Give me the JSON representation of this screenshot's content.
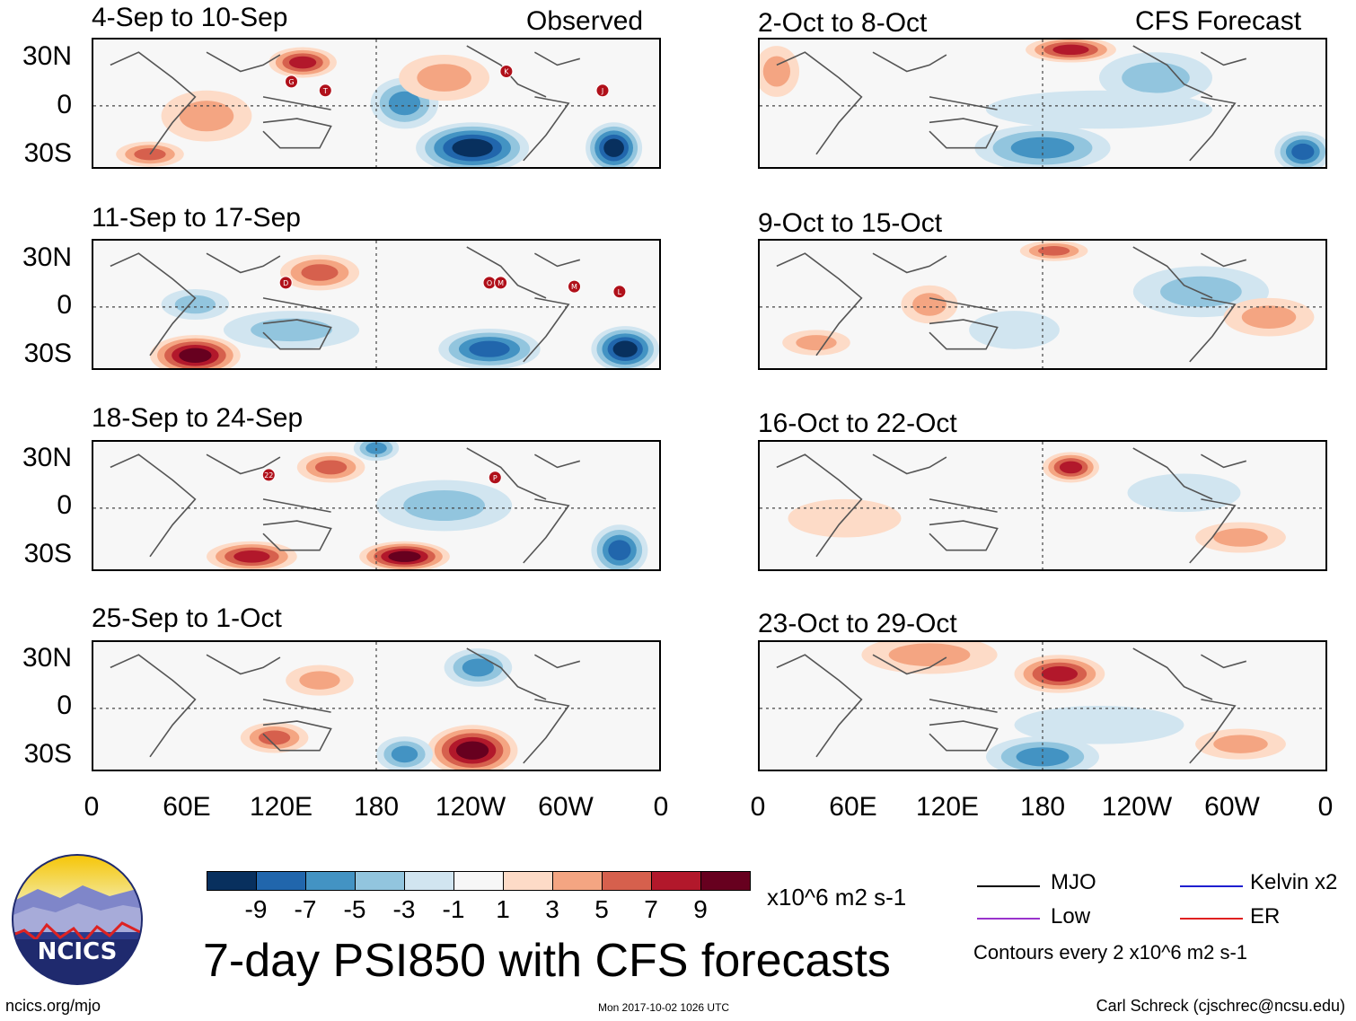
{
  "title": "7-day PSI850 with CFS forecasts",
  "header": {
    "observed_label": "Observed",
    "forecast_label": "CFS Forecast"
  },
  "panels": {
    "observed": [
      {
        "title": "4-Sep to 10-Sep",
        "storms": [
          "G",
          "T",
          "K",
          "J"
        ]
      },
      {
        "title": "11-Sep to 17-Sep",
        "storms": [
          "D",
          "O",
          "M",
          "M",
          "L"
        ]
      },
      {
        "title": "18-Sep to 24-Sep",
        "storms": [
          "22",
          "P"
        ]
      },
      {
        "title": "25-Sep to 1-Oct",
        "storms": []
      }
    ],
    "forecast": [
      {
        "title": "2-Oct to 8-Oct"
      },
      {
        "title": "9-Oct to 15-Oct"
      },
      {
        "title": "16-Oct to 22-Oct"
      },
      {
        "title": "23-Oct to 29-Oct"
      }
    ]
  },
  "axes": {
    "y_ticks": [
      "30N",
      "0",
      "30S"
    ],
    "x_ticks": [
      "0",
      "60E",
      "120E",
      "180",
      "120W",
      "60W",
      "0"
    ]
  },
  "colorbar": {
    "labels": [
      "-9",
      "-7",
      "-5",
      "-3",
      "-1",
      "1",
      "3",
      "5",
      "7",
      "9"
    ],
    "colors": [
      "#08305e",
      "#2166ac",
      "#4393c3",
      "#92c5de",
      "#d1e5f0",
      "#f7f7f7",
      "#fddbc7",
      "#f4a582",
      "#d6604d",
      "#b2182b",
      "#67001f"
    ],
    "units": "x10^6 m2 s-1"
  },
  "legend": {
    "items": [
      {
        "label": "MJO",
        "color": "#000000"
      },
      {
        "label": "Kelvin x2",
        "color": "#1f1fd0"
      },
      {
        "label": "Low",
        "color": "#9933cc"
      },
      {
        "label": "ER",
        "color": "#e02020"
      }
    ],
    "contour_note": "Contours every 2 x10^6 m2 s-1"
  },
  "logo": {
    "text": "NCICS"
  },
  "footer": {
    "url": "ncics.org/mjo",
    "timestamp": "Mon 2017-10-02 1026 UTC",
    "author": "Carl Schreck (cjschrec@ncsu.edu)"
  }
}
